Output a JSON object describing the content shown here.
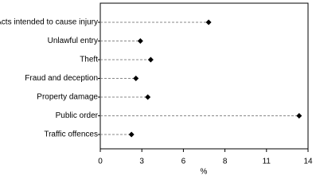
{
  "chart_data": {
    "type": "dot",
    "categories": [
      "Acts intended to cause injury",
      "Unlawful entry",
      "Theft",
      "Fraud and deception",
      "Property damage",
      "Public order",
      "Traffic offences"
    ],
    "values": [
      7.3,
      2.7,
      3.4,
      2.4,
      3.2,
      13.4,
      2.1
    ],
    "color": "#000000",
    "xlabel": "%",
    "xlim": [
      0,
      14
    ],
    "xticks": [
      0,
      {
        "value": 2.8,
        "label": "3"
      },
      {
        "value": 5.6,
        "label": "6"
      },
      {
        "value": 8.4,
        "label": "8"
      },
      {
        "value": 11.2,
        "label": "11"
      },
      14
    ]
  }
}
